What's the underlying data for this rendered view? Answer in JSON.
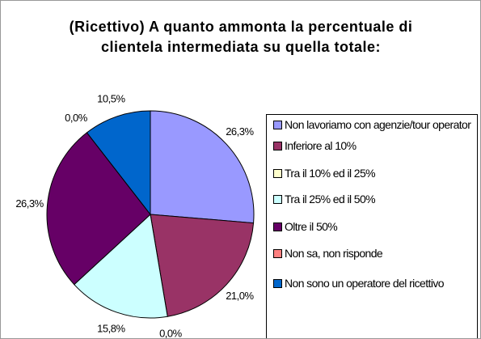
{
  "chart_data": {
    "type": "pie",
    "title": "(Ricettivo) A quanto ammonta la percentuale di clientela intermediata su quella totale:",
    "categories": [
      "Non lavoriamo con agenzie/tour operator",
      "Inferiore al 10%",
      "Tra il 10% ed il 25%",
      "Tra il 25% ed il 50%",
      "Oltre il 50%",
      "Non sa, non risponde",
      "Non sono un operatore del ricettivo"
    ],
    "values": [
      26.3,
      21.0,
      0.0,
      15.8,
      26.3,
      0.0,
      10.5
    ],
    "value_labels": [
      "26,3%",
      "21,0%",
      "0,0%",
      "15,8%",
      "26,3%",
      "0,0%",
      "10,5%"
    ],
    "colors": [
      "#9999ff",
      "#993366",
      "#ffffcc",
      "#ccffff",
      "#660066",
      "#ff8080",
      "#0066cc"
    ],
    "legend": "right"
  }
}
